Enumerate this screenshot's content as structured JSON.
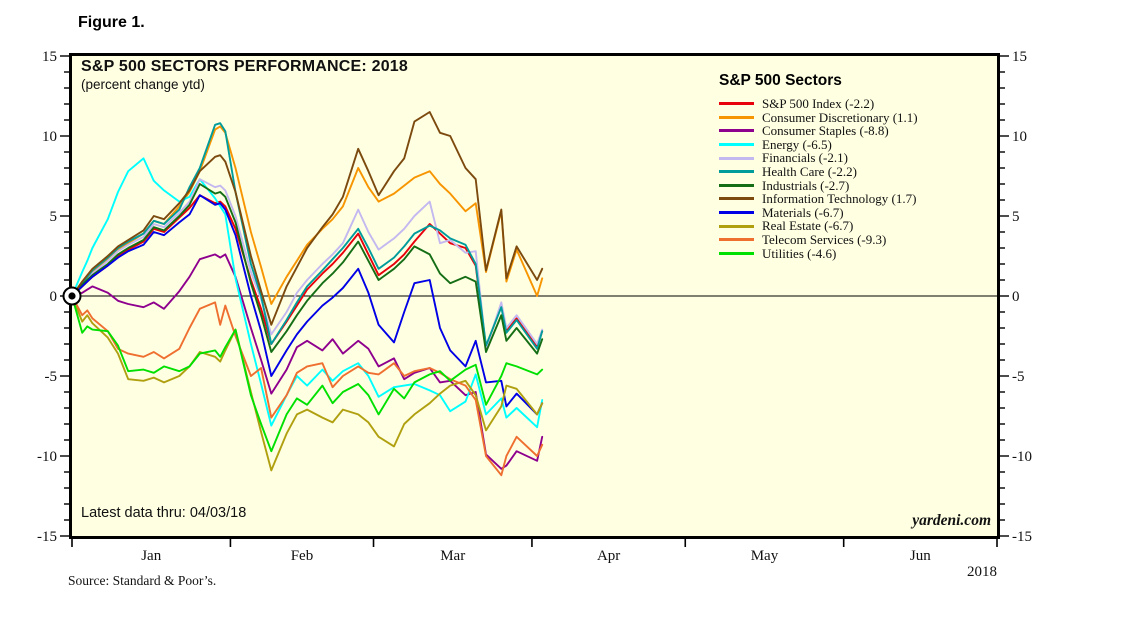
{
  "figure_label": "Figure 1.",
  "chart": {
    "title": "S&P 500 SECTORS PERFORMANCE: 2018",
    "subtitle": "(percent change ytd)",
    "note": "Latest data thru: 04/03/18",
    "watermark": "yardeni.com",
    "source": "Source: Standard & Poor’s.",
    "year_label": "2018",
    "background_color": "#ffffe2",
    "frame_color": "#000000"
  },
  "legend": {
    "title": "S&P 500 Sectors"
  },
  "chart_data": {
    "type": "line",
    "title": "S&P 500 SECTORS PERFORMANCE: 2018",
    "subtitle": "(percent change ytd)",
    "ylabel": "percent change ytd",
    "xlabel": "2018",
    "x_unit": "days since Jan 1, 2018",
    "x": [
      0,
      2,
      3,
      4,
      7,
      9,
      11,
      14,
      16,
      18,
      21,
      23,
      25,
      28,
      29,
      30,
      32,
      35,
      37,
      39,
      42,
      44,
      46,
      49,
      51,
      53,
      56,
      58,
      60,
      63,
      65,
      67,
      70,
      72,
      74,
      77,
      79,
      81,
      84,
      85,
      87,
      91,
      92
    ],
    "x_axis": {
      "range": [
        0,
        181
      ],
      "month_labels": [
        "Jan",
        "Feb",
        "Mar",
        "Apr",
        "May",
        "Jun"
      ],
      "month_start_days": [
        0,
        31,
        59,
        90,
        120,
        151,
        181
      ]
    },
    "y_axis": {
      "min": -15,
      "max": 15,
      "major_tick": 5,
      "minor_tick": 1,
      "tick_labels": [
        "15",
        "10",
        "5",
        "0",
        "-5",
        "-10",
        "-15"
      ],
      "grid": false,
      "zero_line": true
    },
    "origin_marker": {
      "x": 0,
      "y": 0,
      "style": "bullseye"
    },
    "legend_position": "top-right-inside",
    "series": [
      {
        "name": "S&P 500 Index (-2.2)",
        "color": "#e8000b",
        "values": [
          0,
          0.6,
          0.9,
          1.2,
          1.9,
          2.5,
          2.9,
          3.4,
          4.2,
          4.0,
          4.9,
          5.5,
          6.3,
          5.8,
          5.9,
          5.6,
          4.2,
          1.0,
          -0.8,
          -3.0,
          -1.6,
          -0.6,
          0.4,
          1.4,
          2.0,
          2.7,
          3.9,
          2.6,
          1.3,
          2.0,
          2.6,
          3.4,
          4.5,
          3.9,
          3.3,
          3.0,
          1.9,
          -3.2,
          -0.6,
          -2.2,
          -1.4,
          -3.2,
          -2.2
        ]
      },
      {
        "name": "Consumer Discretionary (1.1)",
        "color": "#f79500",
        "values": [
          0,
          0.8,
          1.1,
          1.5,
          2.3,
          2.9,
          3.3,
          3.9,
          4.7,
          4.5,
          5.6,
          6.5,
          7.8,
          10.4,
          10.6,
          10.2,
          8.0,
          4.0,
          1.8,
          -0.5,
          1.2,
          2.2,
          3.2,
          4.2,
          4.8,
          5.6,
          8.0,
          6.8,
          5.9,
          6.4,
          6.9,
          7.4,
          7.8,
          7.0,
          6.4,
          5.3,
          5.8,
          1.5,
          5.3,
          0.9,
          2.9,
          0.0,
          1.1
        ]
      },
      {
        "name": "Consumer Staples (-8.8)",
        "color": "#8e008e",
        "values": [
          0,
          0.2,
          0.4,
          0.6,
          0.2,
          -0.3,
          -0.5,
          -0.7,
          -0.4,
          -0.8,
          0.3,
          1.2,
          2.3,
          2.6,
          2.4,
          2.6,
          1.2,
          -2.0,
          -4.0,
          -6.1,
          -4.6,
          -3.2,
          -2.8,
          -3.4,
          -2.7,
          -3.6,
          -2.8,
          -3.3,
          -4.4,
          -3.9,
          -5.2,
          -4.8,
          -4.5,
          -5.4,
          -5.3,
          -6.2,
          -6.0,
          -9.9,
          -10.8,
          -10.6,
          -9.7,
          -10.3,
          -8.8
        ]
      },
      {
        "name": "Energy (-6.5)",
        "color": "#00ffff",
        "values": [
          0,
          1.5,
          2.2,
          3.0,
          4.8,
          6.5,
          7.8,
          8.6,
          7.2,
          6.6,
          5.9,
          6.2,
          7.3,
          6.1,
          5.6,
          5.1,
          1.1,
          -3.0,
          -5.5,
          -8.1,
          -6.2,
          -5.0,
          -5.6,
          -4.6,
          -5.3,
          -4.7,
          -4.2,
          -5.0,
          -6.3,
          -5.7,
          -5.6,
          -5.5,
          -5.9,
          -6.2,
          -7.2,
          -6.6,
          -4.9,
          -7.4,
          -6.4,
          -7.6,
          -7.0,
          -8.2,
          -6.5
        ]
      },
      {
        "name": "Financials (-2.1)",
        "color": "#c3b8f0",
        "values": [
          0,
          0.7,
          1.0,
          1.4,
          2.2,
          2.8,
          3.2,
          3.7,
          4.5,
          4.3,
          5.2,
          5.9,
          7.3,
          6.8,
          6.9,
          6.6,
          5.0,
          1.5,
          -0.2,
          -2.4,
          -1.0,
          0.2,
          1.0,
          2.0,
          2.6,
          3.3,
          5.4,
          4.0,
          2.9,
          3.6,
          4.2,
          5.0,
          5.9,
          3.3,
          3.5,
          2.7,
          2.8,
          -3.3,
          -0.4,
          -2.0,
          -1.2,
          -3.0,
          -2.1
        ]
      },
      {
        "name": "Health Care (-2.2)",
        "color": "#009c9c",
        "values": [
          0,
          0.8,
          1.2,
          1.6,
          2.4,
          3.0,
          3.4,
          3.9,
          4.7,
          4.5,
          5.4,
          6.8,
          8.0,
          10.7,
          10.8,
          10.3,
          6.5,
          2.0,
          0.0,
          -3.0,
          -1.5,
          -0.4,
          0.6,
          1.6,
          2.3,
          3.0,
          4.2,
          3.0,
          1.7,
          2.4,
          3.1,
          3.9,
          4.4,
          4.1,
          3.6,
          3.2,
          2.0,
          -3.1,
          -0.7,
          -2.3,
          -1.5,
          -3.3,
          -2.2
        ]
      },
      {
        "name": "Industrials (-2.7)",
        "color": "#156e15",
        "values": [
          0,
          0.7,
          1.0,
          1.3,
          2.0,
          2.6,
          3.0,
          3.5,
          4.3,
          4.1,
          5.0,
          5.7,
          7.0,
          6.4,
          6.5,
          6.2,
          4.6,
          0.8,
          -1.2,
          -3.5,
          -2.2,
          -1.2,
          -0.3,
          0.8,
          1.4,
          2.1,
          3.4,
          2.2,
          1.0,
          1.7,
          2.3,
          3.1,
          2.6,
          1.4,
          0.8,
          1.2,
          0.9,
          -3.5,
          -1.2,
          -2.8,
          -2.0,
          -3.6,
          -2.7
        ]
      },
      {
        "name": "Information Technology (1.7)",
        "color": "#7c4a0e",
        "values": [
          0,
          0.9,
          1.3,
          1.7,
          2.5,
          3.1,
          3.5,
          4.1,
          5.0,
          4.8,
          5.8,
          6.6,
          7.8,
          8.7,
          8.8,
          8.4,
          6.5,
          2.5,
          0.3,
          -1.8,
          0.6,
          1.8,
          3.0,
          4.3,
          5.1,
          6.2,
          9.2,
          7.8,
          6.3,
          7.8,
          8.6,
          10.9,
          11.5,
          10.2,
          10.0,
          8.0,
          7.3,
          1.6,
          5.4,
          1.1,
          3.1,
          1.0,
          1.7
        ]
      },
      {
        "name": "Materials (-6.7)",
        "color": "#0000e6",
        "values": [
          0,
          0.6,
          0.9,
          1.2,
          1.9,
          2.4,
          2.8,
          3.2,
          4.0,
          3.8,
          4.6,
          5.1,
          6.3,
          5.7,
          5.8,
          5.4,
          3.8,
          0.0,
          -2.2,
          -5.0,
          -3.4,
          -2.4,
          -1.6,
          -0.6,
          -0.1,
          0.5,
          1.7,
          0.2,
          -1.8,
          -2.9,
          -1.0,
          0.8,
          1.0,
          -2.0,
          -3.4,
          -4.4,
          -2.8,
          -5.4,
          -5.3,
          -6.9,
          -6.1,
          -7.4,
          -6.7
        ]
      },
      {
        "name": "Real Estate (-6.7)",
        "color": "#b0a010",
        "values": [
          0,
          -1.6,
          -1.2,
          -1.7,
          -2.6,
          -3.6,
          -5.2,
          -5.3,
          -5.1,
          -5.4,
          -5.0,
          -4.4,
          -3.5,
          -3.8,
          -4.1,
          -3.4,
          -2.1,
          -6.0,
          -8.5,
          -10.9,
          -8.6,
          -7.4,
          -7.1,
          -7.6,
          -7.9,
          -7.1,
          -7.4,
          -7.9,
          -8.8,
          -9.4,
          -8.0,
          -7.4,
          -6.7,
          -6.1,
          -5.6,
          -5.3,
          -6.2,
          -8.4,
          -6.9,
          -5.6,
          -5.8,
          -7.4,
          -6.7
        ]
      },
      {
        "name": "Telecom Services (-9.3)",
        "color": "#ee6f30",
        "values": [
          0,
          -1.2,
          -0.9,
          -1.4,
          -2.2,
          -3.3,
          -3.6,
          -3.8,
          -3.5,
          -3.9,
          -3.3,
          -2.0,
          -0.8,
          -0.4,
          -1.8,
          -0.6,
          -2.5,
          -5.0,
          -4.5,
          -7.6,
          -6.2,
          -4.8,
          -4.4,
          -4.2,
          -5.7,
          -5.0,
          -4.4,
          -4.8,
          -4.9,
          -4.2,
          -5.0,
          -4.7,
          -4.5,
          -4.8,
          -5.2,
          -5.6,
          -6.5,
          -10.0,
          -11.2,
          -10.0,
          -8.8,
          -10.0,
          -9.3
        ]
      },
      {
        "name": "Utilities (-4.6)",
        "color": "#00e000",
        "values": [
          0,
          -2.3,
          -1.9,
          -2.1,
          -2.2,
          -3.1,
          -4.7,
          -4.6,
          -4.8,
          -4.4,
          -4.7,
          -4.4,
          -3.6,
          -3.4,
          -3.8,
          -3.2,
          -2.1,
          -6.2,
          -8.0,
          -9.7,
          -7.4,
          -6.4,
          -6.8,
          -5.6,
          -6.7,
          -6.0,
          -5.5,
          -6.2,
          -7.4,
          -5.8,
          -6.4,
          -5.4,
          -4.9,
          -4.7,
          -5.3,
          -4.6,
          -4.3,
          -6.8,
          -5.0,
          -4.2,
          -4.4,
          -4.9,
          -4.6
        ]
      }
    ]
  }
}
